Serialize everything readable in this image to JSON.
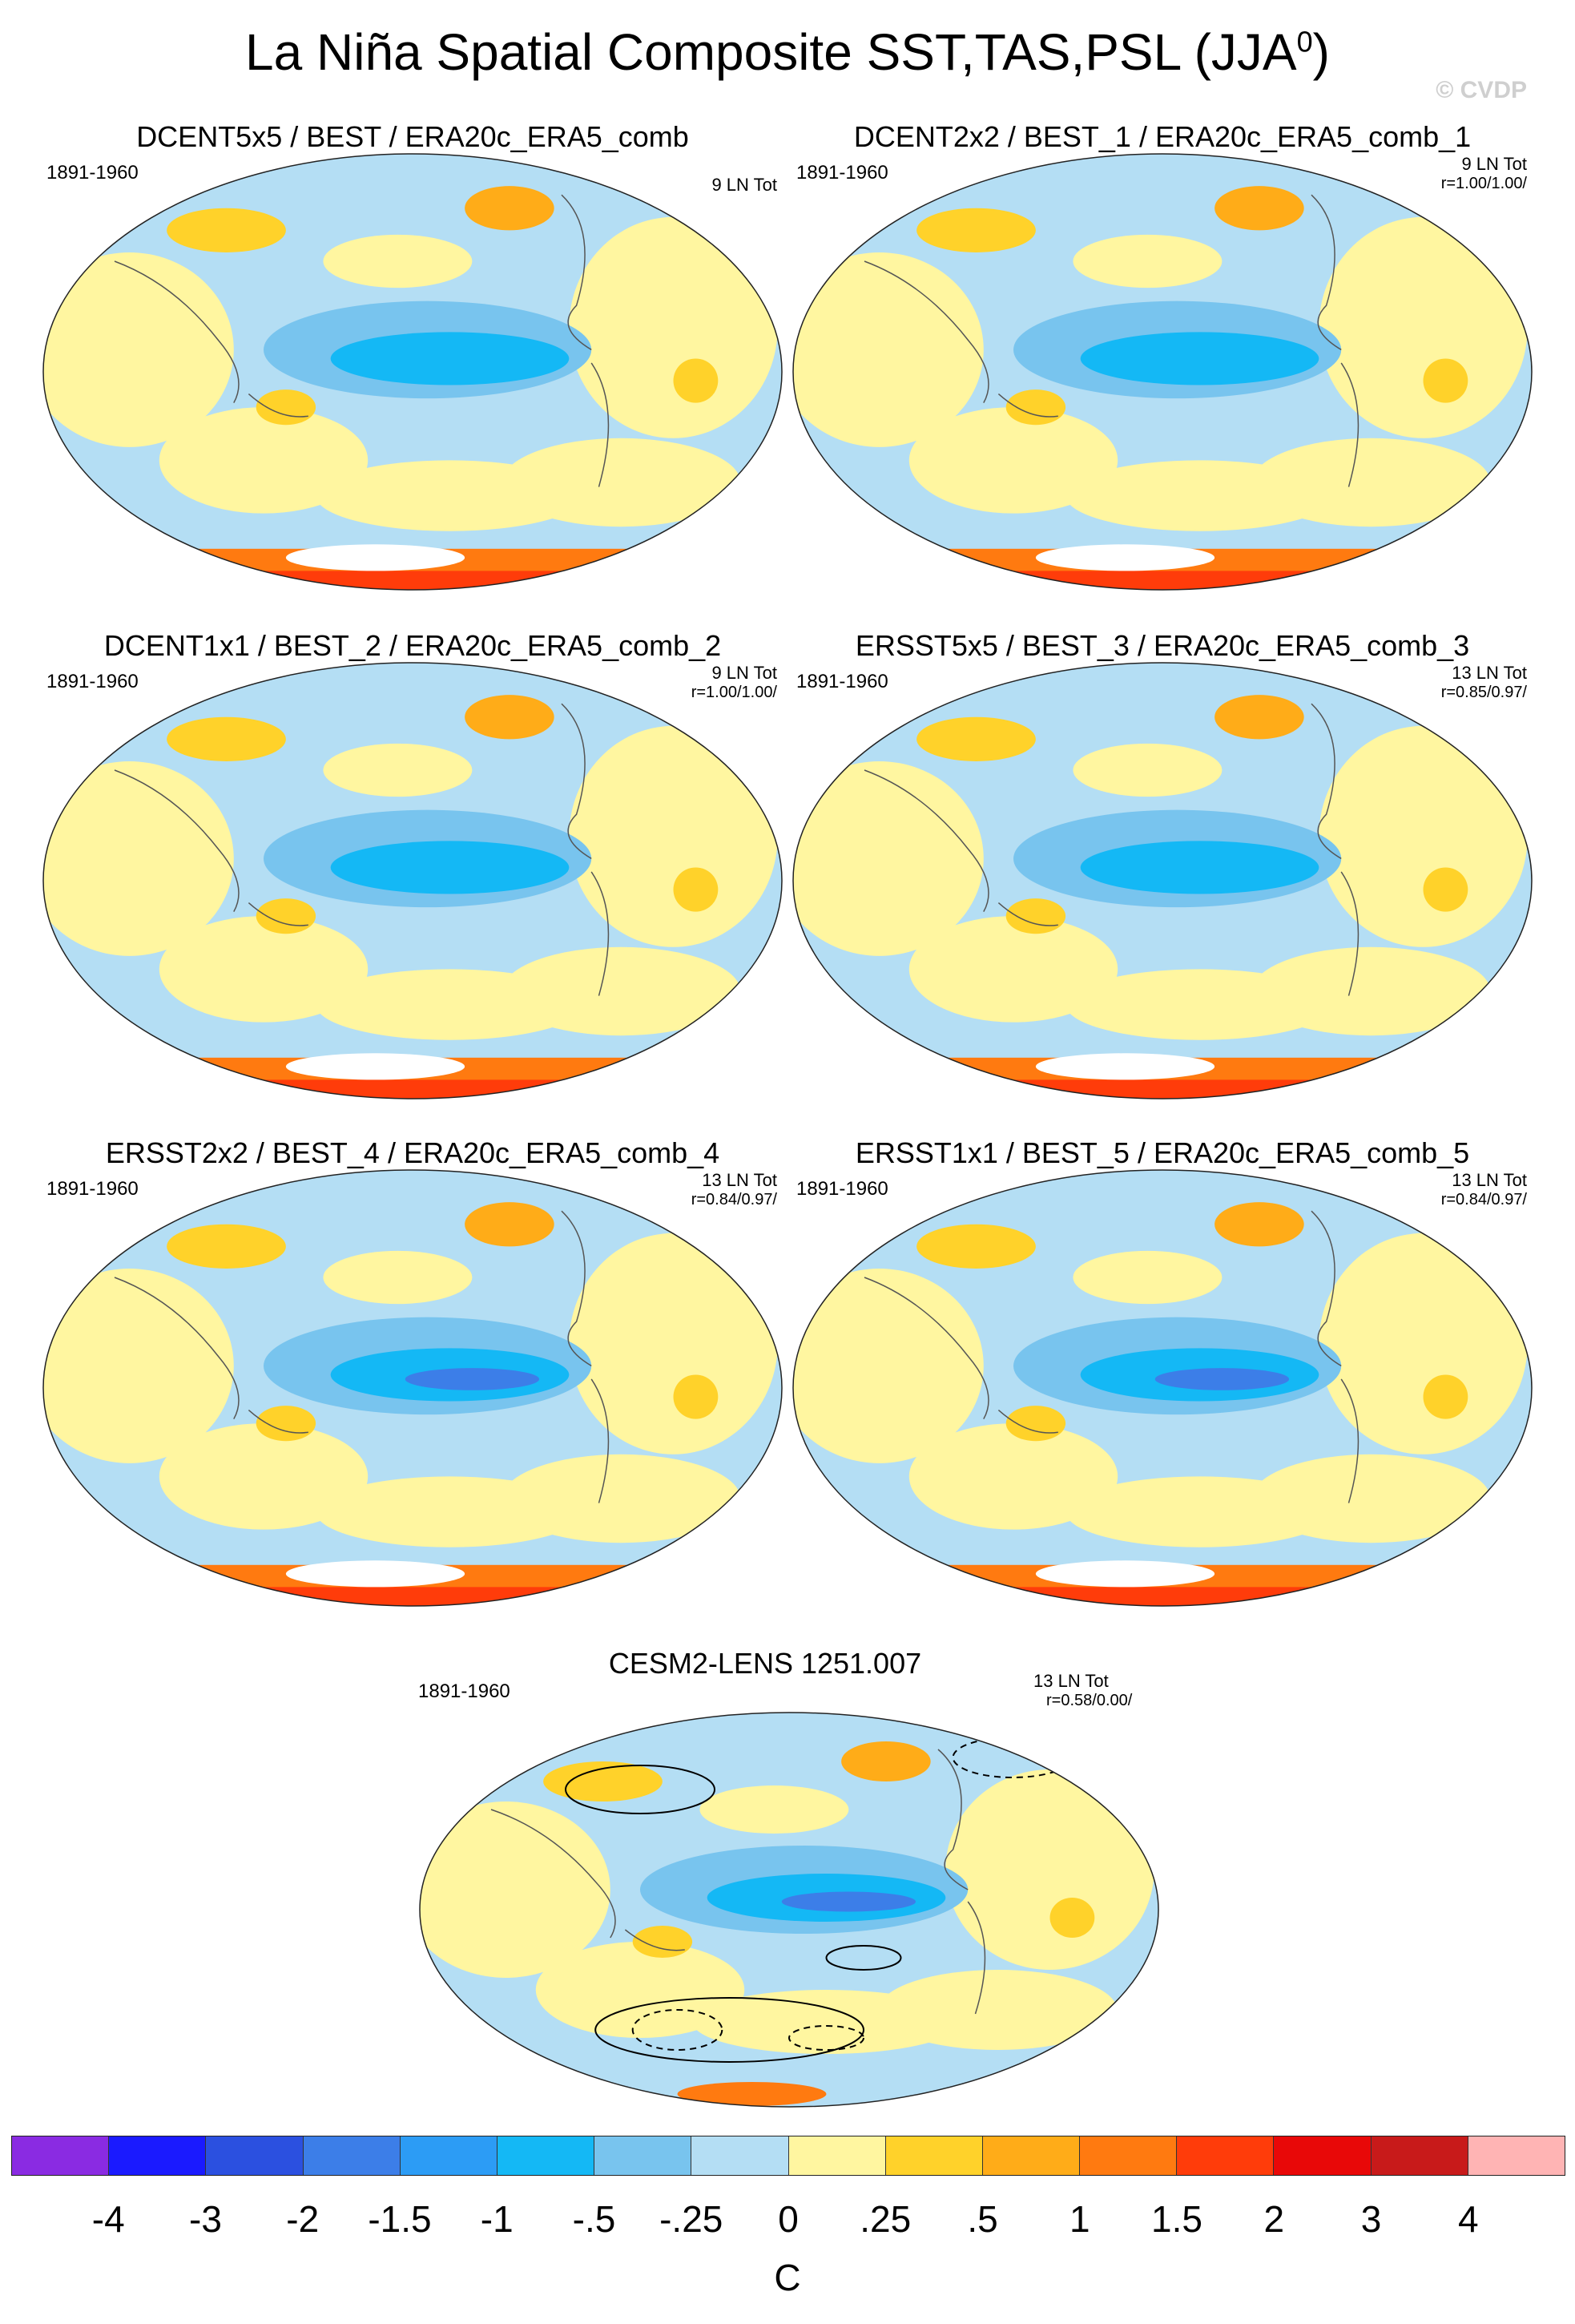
{
  "figure": {
    "title": "La Niña Spatial Composite SST,TAS,PSL (JJA",
    "title_sup": "0",
    "title_close": ")",
    "copyright": "© CVDP"
  },
  "panels": [
    {
      "id": "p1",
      "title": "DCENT5x5 / BEST / ERA20c_ERA5_comb",
      "period": "1891-1960",
      "count": "9 LN Tot",
      "corr": ""
    },
    {
      "id": "p2",
      "title": "DCENT2x2 / BEST_1 / ERA20c_ERA5_comb_1",
      "period": "1891-1960",
      "count": "9 LN Tot",
      "corr": "r=1.00/1.00/"
    },
    {
      "id": "p3",
      "title": "DCENT1x1 / BEST_2 / ERA20c_ERA5_comb_2",
      "period": "1891-1960",
      "count": "9 LN Tot",
      "corr": "r=1.00/1.00/"
    },
    {
      "id": "p4",
      "title": "ERSST5x5 / BEST_3 / ERA20c_ERA5_comb_3",
      "period": "1891-1960",
      "count": "13 LN Tot",
      "corr": "r=0.85/0.97/"
    },
    {
      "id": "p5",
      "title": "ERSST2x2 / BEST_4 / ERA20c_ERA5_comb_4",
      "period": "1891-1960",
      "count": "13 LN Tot",
      "corr": "r=0.84/0.97/"
    },
    {
      "id": "p6",
      "title": "ERSST1x1 / BEST_5 / ERA20c_ERA5_comb_5",
      "period": "1891-1960",
      "count": "13 LN Tot",
      "corr": "r=0.84/0.97/"
    },
    {
      "id": "p7",
      "title": "CESM2-LENS 1251.007",
      "period": "1891-1960",
      "count": "13 LN Tot",
      "corr": "r=0.58/0.00/"
    }
  ],
  "colorbar": {
    "unit": "C",
    "labels": [
      "-4",
      "-3",
      "-2",
      "-1.5",
      "-1",
      "-.5",
      "-.25",
      "0",
      ".25",
      ".5",
      "1",
      "1.5",
      "2",
      "3",
      "4"
    ],
    "colors": [
      "#8a2be2",
      "#1a1aff",
      "#2b50e0",
      "#3c7ee8",
      "#2c9cf5",
      "#14b8f5",
      "#78c4ee",
      "#b4def4",
      "#fff6a0",
      "#ffd22a",
      "#ffac18",
      "#ff7a10",
      "#ff3c0a",
      "#e80808",
      "#c81a1a",
      "#ffb4b4"
    ]
  },
  "palette": {
    "ocean_neutral": "#b4def4",
    "warm_light": "#fff6a0",
    "warm_mid": "#ffd22a",
    "warm_strong": "#ffac18",
    "cool_mid": "#78c4ee",
    "cool_strong": "#14b8f5",
    "cool_deep": "#3c7ee8",
    "antarctic_hot": "#ff3c0a",
    "antarctic_mid": "#ff7a10",
    "land_outline": "#555555"
  }
}
